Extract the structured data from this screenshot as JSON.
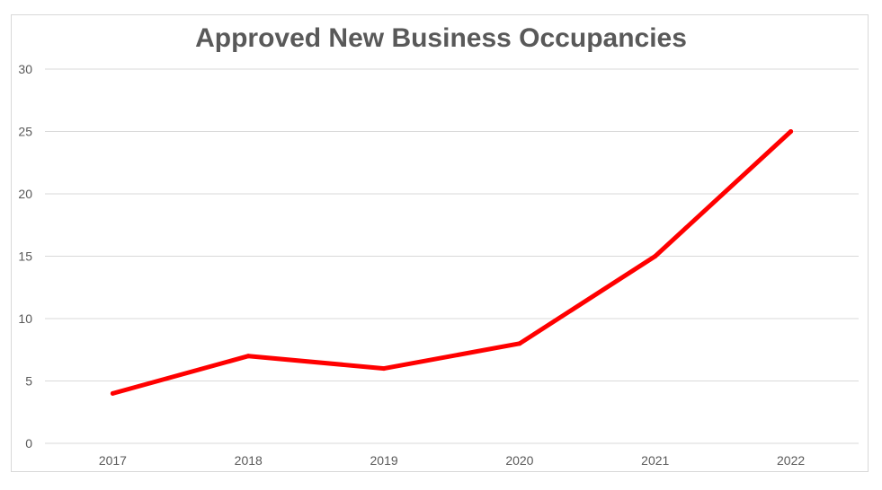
{
  "chart_data": {
    "type": "line",
    "title": "Approved New Business Occupancies",
    "xlabel": "",
    "ylabel": "",
    "categories": [
      "2017",
      "2018",
      "2019",
      "2020",
      "2021",
      "2022"
    ],
    "series": [
      {
        "values": [
          4,
          7,
          6,
          8,
          15,
          25
        ],
        "color": "#ff0000"
      }
    ],
    "ylim": [
      0,
      30
    ],
    "yticks": [
      0,
      5,
      10,
      15,
      20,
      25,
      30
    ],
    "grid": true,
    "legend": "none",
    "gridline_color": "#d9d9d9",
    "text_color": "#595959"
  }
}
